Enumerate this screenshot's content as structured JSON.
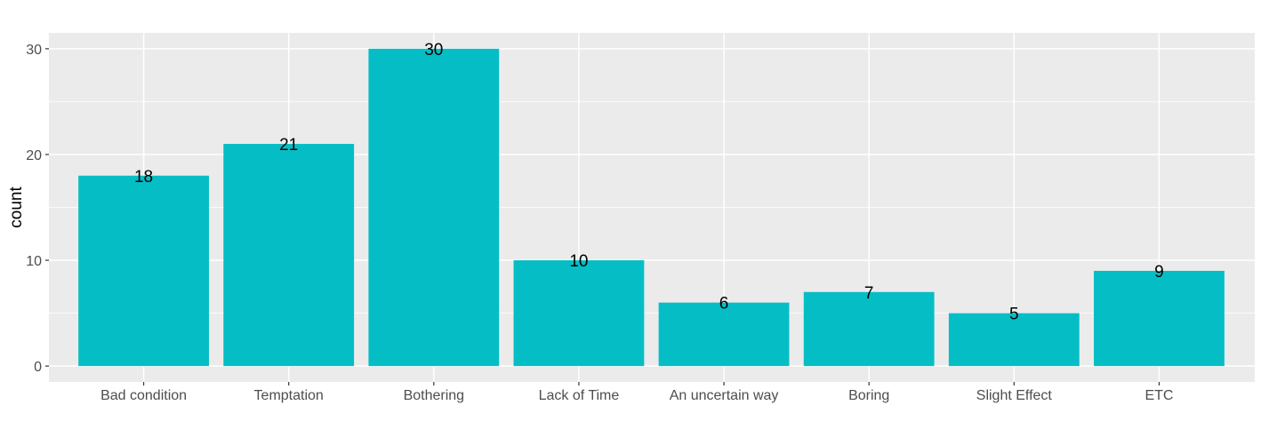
{
  "chart_data": {
    "type": "bar",
    "title": "",
    "xlabel": "",
    "ylabel": "count",
    "categories": [
      "Bad condition",
      "Temptation",
      "Bothering",
      "Lack of Time",
      "An uncertain way",
      "Boring",
      "Slight Effect",
      "ETC"
    ],
    "values": [
      18,
      21,
      30,
      10,
      6,
      7,
      5,
      9
    ],
    "data_labels": [
      "18",
      "21",
      "30",
      "10",
      "6",
      "7",
      "5",
      "9"
    ],
    "ylim": [
      -1.5,
      31.5
    ],
    "y_ticks": [
      0,
      10,
      20,
      30
    ],
    "y_tick_labels": [
      "0",
      "10",
      "20",
      "30"
    ],
    "grid": true,
    "legend": "none",
    "bar_color": "#05BEC5",
    "panel_background": "#EBEBEB",
    "grid_color": "#FFFFFF"
  }
}
